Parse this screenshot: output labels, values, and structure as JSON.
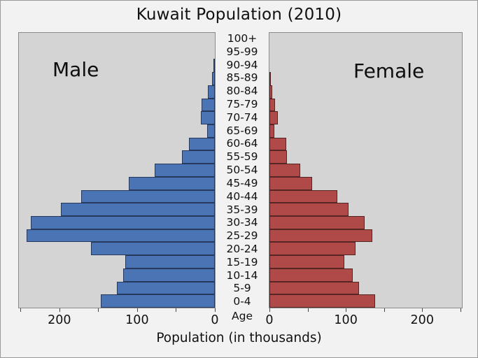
{
  "title": "Kuwait Population (2010)",
  "chart_data": {
    "type": "bar",
    "subtype": "population-pyramid",
    "title": "Kuwait Population (2010)",
    "xlabel": "Population (in thousands)",
    "center_axis_label": "Age",
    "left_label": "Male",
    "right_label": "Female",
    "grid": false,
    "age_groups_top_to_bottom": [
      "100+",
      "95-99",
      "90-94",
      "85-89",
      "80-84",
      "75-79",
      "70-74",
      "65-69",
      "60-64",
      "55-59",
      "50-54",
      "45-49",
      "40-44",
      "35-39",
      "30-34",
      "25-29",
      "20-24",
      "15-19",
      "10-14",
      "5-9",
      "0-4"
    ],
    "axis": {
      "unit": "thousands",
      "max": 252,
      "tick_step": 50,
      "tick_values": [
        0,
        50,
        100,
        150,
        200,
        250
      ],
      "labeled_ticks": [
        0,
        100,
        200
      ]
    },
    "series": [
      {
        "name": "Male",
        "side": "left",
        "fill_color": "#4a74b4",
        "edge_color": "#26395c",
        "values": [
          0,
          0.3,
          1,
          3.5,
          9,
          17,
          18,
          10,
          33,
          42,
          77,
          111,
          172,
          198,
          237,
          242,
          159,
          115,
          118,
          126,
          147
        ]
      },
      {
        "name": "Female",
        "side": "right",
        "fill_color": "#b04a48",
        "edge_color": "#582525",
        "values": [
          0,
          0.2,
          0.5,
          2,
          4,
          7.5,
          11,
          6.5,
          22,
          23,
          40,
          56,
          89,
          104,
          125,
          135,
          113,
          98,
          109,
          117,
          138
        ]
      }
    ],
    "colors": {
      "plot_background": "#d4d4d4",
      "figure_background": "#f2f2f2",
      "text": "#111111",
      "spine": "#8a8a8a",
      "tick": "#444444"
    }
  }
}
